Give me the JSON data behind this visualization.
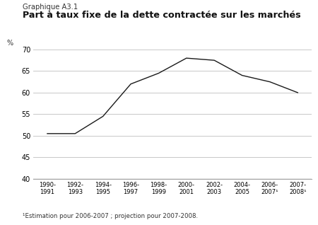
{
  "suptitle": "Graphique A3.1",
  "title": "Part à taux fixe de la dette contractée sur les marchés",
  "ylabel": "%",
  "footnote": "¹Estimation pour 2006-2007 ; projection pour 2007-2008.",
  "x_labels": [
    "1990-\n1991",
    "1992-\n1993",
    "1994-\n1995",
    "1996-\n1997",
    "1998-\n1999",
    "2000-\n2001",
    "2002-\n2003",
    "2004-\n2005",
    "2006-\n2007¹",
    "2007-\n2008¹"
  ],
  "x_values": [
    0,
    1,
    2,
    3,
    4,
    5,
    6,
    7,
    8,
    9
  ],
  "y_values": [
    50.5,
    50.5,
    54.5,
    62.0,
    64.5,
    68.0,
    67.5,
    64.0,
    62.5,
    60.0
  ],
  "ylim": [
    40,
    70
  ],
  "yticks": [
    40,
    45,
    50,
    55,
    60,
    65,
    70
  ],
  "line_color": "#1a1a1a",
  "grid_color": "#c8c8c8",
  "background_color": "#ffffff",
  "border_color": "#aaaaaa"
}
